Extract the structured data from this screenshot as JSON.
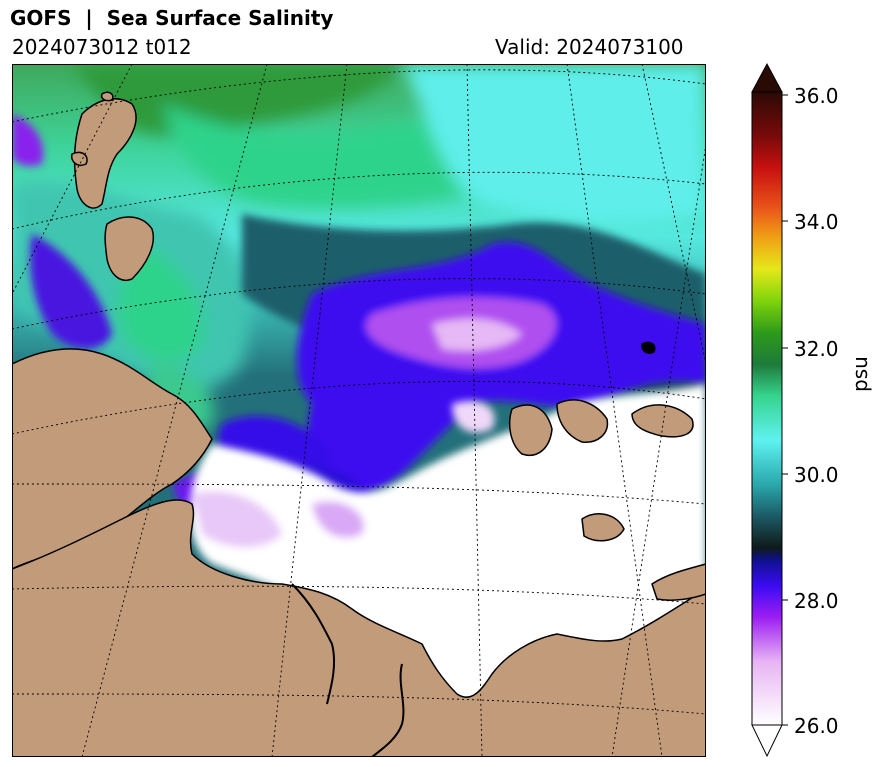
{
  "header": {
    "title": "GOFS  |  Sea Surface Salinity",
    "init_label": "2024073012 t012",
    "valid_label": "Valid: 2024073100"
  },
  "colorbar": {
    "unit": "psu",
    "min": 26.0,
    "max": 36.0,
    "ticks": [
      "26.0",
      "28.0",
      "30.0",
      "32.0",
      "34.0",
      "36.0"
    ],
    "extend": "both",
    "colormap": "haline-like (white-purple-blue-teal-green-yellow-red-dark brown)"
  },
  "map": {
    "projection": "polar stereographic (conic-like graticule)",
    "land_color": "#c19b7a",
    "coastline_color": "#000000",
    "graticule_style": "dotted"
  }
}
